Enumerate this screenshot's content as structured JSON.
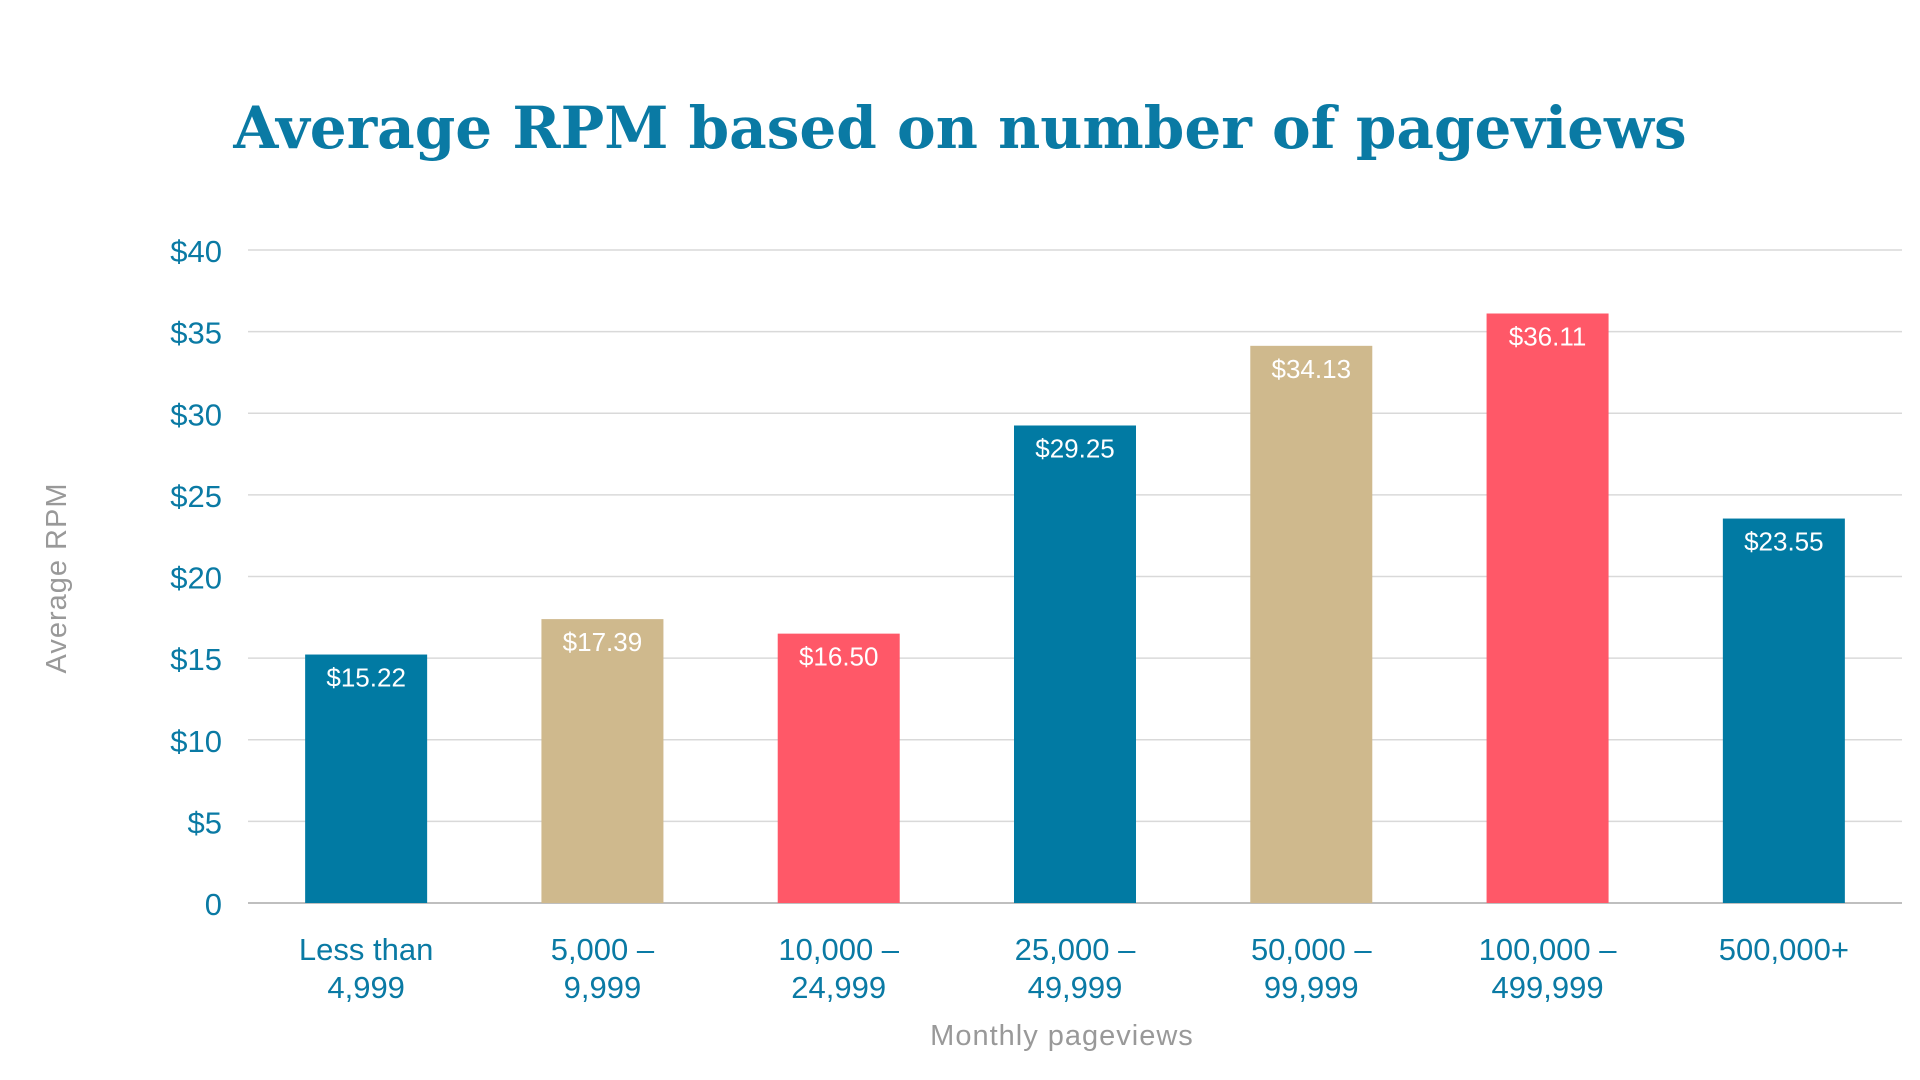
{
  "chart_data": {
    "type": "bar",
    "title": "Average RPM based on number of pageviews",
    "xlabel": "Monthly pageviews",
    "ylabel": "Average RPM",
    "ylim": [
      0,
      40
    ],
    "y_ticks": [
      {
        "value": 0,
        "label": "0"
      },
      {
        "value": 5,
        "label": "$5"
      },
      {
        "value": 10,
        "label": "$10"
      },
      {
        "value": 15,
        "label": "$15"
      },
      {
        "value": 20,
        "label": "$20"
      },
      {
        "value": 25,
        "label": "$25"
      },
      {
        "value": 30,
        "label": "$30"
      },
      {
        "value": 35,
        "label": "$35"
      },
      {
        "value": 40,
        "label": "$40"
      }
    ],
    "categories": [
      [
        "Less than",
        "4,999"
      ],
      [
        "5,000 –",
        "9,999"
      ],
      [
        "10,000 –",
        "24,999"
      ],
      [
        "25,000 –",
        "49,999"
      ],
      [
        "50,000 –",
        "99,999"
      ],
      [
        "100,000 –",
        "499,999"
      ],
      [
        "500,000+"
      ]
    ],
    "values": [
      15.22,
      17.39,
      16.5,
      29.25,
      34.13,
      36.11,
      23.55
    ],
    "data_labels": [
      "$15.22",
      "$17.39",
      "$16.50",
      "$29.25",
      "$34.13",
      "$36.11",
      "$23.55"
    ],
    "bar_colors": [
      "#017aa3",
      "#cfb98d",
      "#ff5868",
      "#017aa3",
      "#cfb98d",
      "#ff5868",
      "#017aa3"
    ],
    "grid": true,
    "legend": "none"
  }
}
